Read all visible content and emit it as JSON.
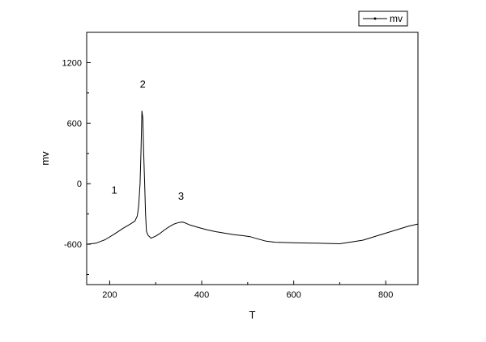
{
  "chart_data": {
    "type": "line",
    "title": "",
    "xlabel": "T",
    "ylabel": "mv",
    "xlim": [
      150,
      870
    ],
    "ylim": [
      -1000,
      1500
    ],
    "xticks": [
      200,
      400,
      600,
      800
    ],
    "yticks": [
      -600,
      0,
      600,
      1200
    ],
    "xtick_labels": [
      "200",
      "400",
      "600",
      "800"
    ],
    "ytick_labels": [
      "-600",
      "0",
      "600",
      "1200"
    ],
    "grid": false,
    "legend_position": "top-right",
    "series": [
      {
        "name": "mv",
        "color": "#000000",
        "x": [
          150,
          170,
          190,
          210,
          230,
          245,
          255,
          260,
          263,
          266,
          268,
          270,
          272,
          274,
          276,
          278,
          280,
          283,
          290,
          300,
          310,
          320,
          330,
          340,
          350,
          358,
          365,
          375,
          390,
          410,
          430,
          450,
          470,
          490,
          505,
          520,
          540,
          560,
          600,
          650,
          700,
          750,
          800,
          850,
          870
        ],
        "y": [
          -600,
          -590,
          -555,
          -500,
          -440,
          -400,
          -370,
          -320,
          -220,
          0,
          300,
          720,
          650,
          300,
          0,
          -300,
          -470,
          -510,
          -540,
          -520,
          -490,
          -455,
          -425,
          -400,
          -385,
          -380,
          -390,
          -410,
          -430,
          -455,
          -475,
          -490,
          -505,
          -515,
          -525,
          -545,
          -570,
          -580,
          -585,
          -590,
          -595,
          -560,
          -490,
          -420,
          -400
        ]
      }
    ],
    "annotations": [
      {
        "text": "1",
        "x": 210,
        "y": -100
      },
      {
        "text": "2",
        "x": 272,
        "y": 950
      },
      {
        "text": "3",
        "x": 355,
        "y": -160
      }
    ]
  }
}
